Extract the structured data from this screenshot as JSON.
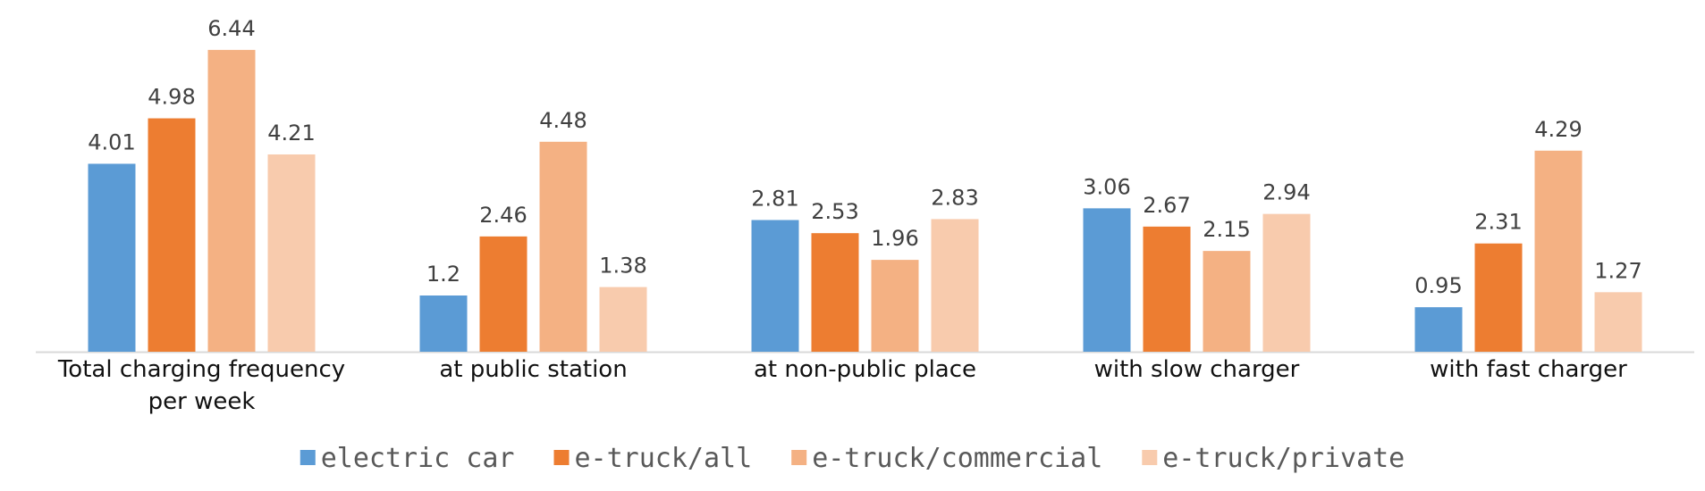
{
  "chart_data": {
    "type": "bar",
    "title": "",
    "xlabel": "",
    "ylabel": "",
    "ylim": [
      0,
      7
    ],
    "grid": false,
    "legend_position": "bottom",
    "categories": [
      [
        "Total charging frequency",
        "per week"
      ],
      [
        "at public station"
      ],
      [
        "at non-public place"
      ],
      [
        "with slow charger"
      ],
      [
        "with fast charger"
      ]
    ],
    "series": [
      {
        "name": "electric car",
        "color": "#5B9BD5",
        "values": [
          4.01,
          1.2,
          2.81,
          3.06,
          0.95
        ]
      },
      {
        "name": "e-truck/all",
        "color": "#ED7D31",
        "values": [
          4.98,
          2.46,
          2.53,
          2.67,
          2.31
        ]
      },
      {
        "name": "e-truck/commercial",
        "color": "#F4B183",
        "values": [
          6.44,
          4.48,
          1.96,
          2.15,
          4.29
        ]
      },
      {
        "name": "e-truck/private",
        "color": "#F8CBAD",
        "values": [
          4.21,
          1.38,
          2.83,
          2.94,
          1.27
        ]
      }
    ]
  }
}
